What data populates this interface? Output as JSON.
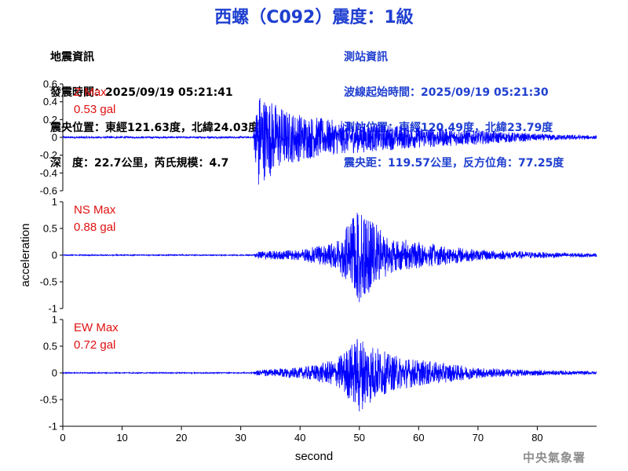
{
  "header": {
    "title": "西螺（C092）震度：1級",
    "quake_info": [
      "地震資訊",
      "發震時間：2025/09/19 05:21:41",
      "震央位置：東經121.63度，北緯24.03度",
      "深　度：22.7公里，芮氏規模：4.7"
    ],
    "station_info": [
      "測站資訊",
      "波線起始時間：2025/09/19 05:21:30",
      "測站位置：東經120.49度，北緯23.79度",
      "震央距：119.57公里，反方位角：77.25度"
    ]
  },
  "footer": {
    "agency": "中央氣象署"
  },
  "colors": {
    "title": "#1f3fd0",
    "trace": "#0000ff",
    "max_label": "#e01010",
    "footer": "#8e8e8e"
  },
  "chart_data": [
    {
      "type": "line",
      "component": "Z",
      "max_label": "Z Max",
      "max_value_label": "0.53 gal",
      "ylim": [
        -0.6,
        0.6
      ],
      "yticks": [
        "0.6",
        "0.4",
        "0.2",
        "0",
        "-0.2",
        "-0.4",
        "-0.6"
      ],
      "envelope": {
        "x": [
          0,
          32,
          33,
          38,
          45,
          60,
          70,
          80,
          90
        ],
        "y": [
          0.01,
          0.01,
          0.53,
          0.3,
          0.2,
          0.12,
          0.08,
          0.04,
          0.02
        ]
      }
    },
    {
      "type": "line",
      "component": "NS",
      "max_label": "NS Max",
      "max_value_label": "0.88 gal",
      "ylim": [
        -1,
        1
      ],
      "yticks": [
        "1",
        "0.5",
        "0",
        "-0.5",
        "-1"
      ],
      "envelope": {
        "x": [
          0,
          32,
          33,
          40,
          46,
          50,
          55,
          60,
          70,
          80,
          90
        ],
        "y": [
          0.01,
          0.01,
          0.07,
          0.1,
          0.25,
          0.88,
          0.35,
          0.25,
          0.1,
          0.06,
          0.03
        ]
      }
    },
    {
      "type": "line",
      "component": "EW",
      "max_label": "EW Max",
      "max_value_label": "0.72 gal",
      "ylim": [
        -1,
        1
      ],
      "yticks": [
        "1",
        "0.5",
        "0",
        "-0.5",
        "-1"
      ],
      "envelope": {
        "x": [
          0,
          32,
          33,
          40,
          46,
          50,
          55,
          60,
          70,
          80,
          90
        ],
        "y": [
          0.01,
          0.01,
          0.06,
          0.1,
          0.25,
          0.72,
          0.35,
          0.25,
          0.1,
          0.05,
          0.03
        ]
      }
    }
  ],
  "shared_axes": {
    "xlabel": "second",
    "ylabel": "acceleration",
    "xlim": [
      0,
      90
    ],
    "xticks": [
      "0",
      "10",
      "20",
      "30",
      "40",
      "50",
      "60",
      "70",
      "80"
    ]
  }
}
